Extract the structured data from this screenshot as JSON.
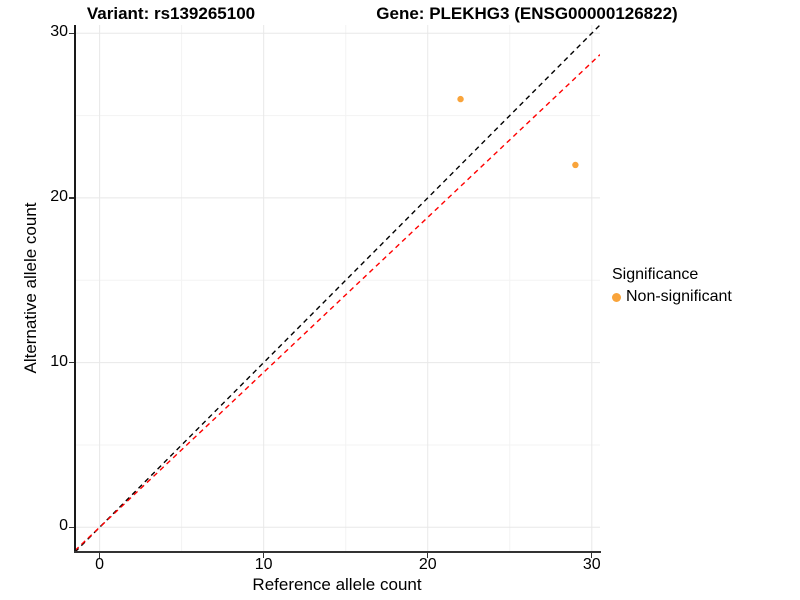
{
  "titles": {
    "variant": "Variant: rs139265100",
    "gene": "Gene: PLEKHG3 (ENSG00000126822)"
  },
  "chart_data": {
    "type": "scatter",
    "title_left": "Variant: rs139265100",
    "title_right": "Gene: PLEKHG3 (ENSG00000126822)",
    "xlabel": "Reference allele count",
    "ylabel": "Alternative allele count",
    "xlim": [
      -1.5,
      30.5
    ],
    "ylim": [
      -1.5,
      30.5
    ],
    "x_ticks": [
      0,
      10,
      20,
      30
    ],
    "y_ticks": [
      0,
      10,
      20,
      30
    ],
    "x_minor_ticks": [
      5,
      15,
      25
    ],
    "y_minor_ticks": [
      5,
      15,
      25
    ],
    "grid": true,
    "colors": {
      "major_grid": "#e8e8e8",
      "minor_grid": "#f3f3f3",
      "point": "#F9A43B",
      "identity_line": "#000000",
      "ratio_line": "#FF0000"
    },
    "points": [
      {
        "x": 22,
        "y": 26,
        "significance": "Non-significant"
      },
      {
        "x": 29,
        "y": 22,
        "significance": "Non-significant"
      }
    ],
    "lines": [
      {
        "name": "identity-line",
        "slope": 1.0,
        "intercept": 0,
        "color": "#000000",
        "style": "dashed"
      },
      {
        "name": "expected-ratio-line",
        "slope": 0.941,
        "intercept": 0,
        "color": "#FF0000",
        "style": "dashed"
      }
    ],
    "legend": {
      "position": "right",
      "title": "Significance",
      "entries": [
        {
          "label": "Non-significant",
          "color": "#F9A43B"
        }
      ]
    }
  }
}
